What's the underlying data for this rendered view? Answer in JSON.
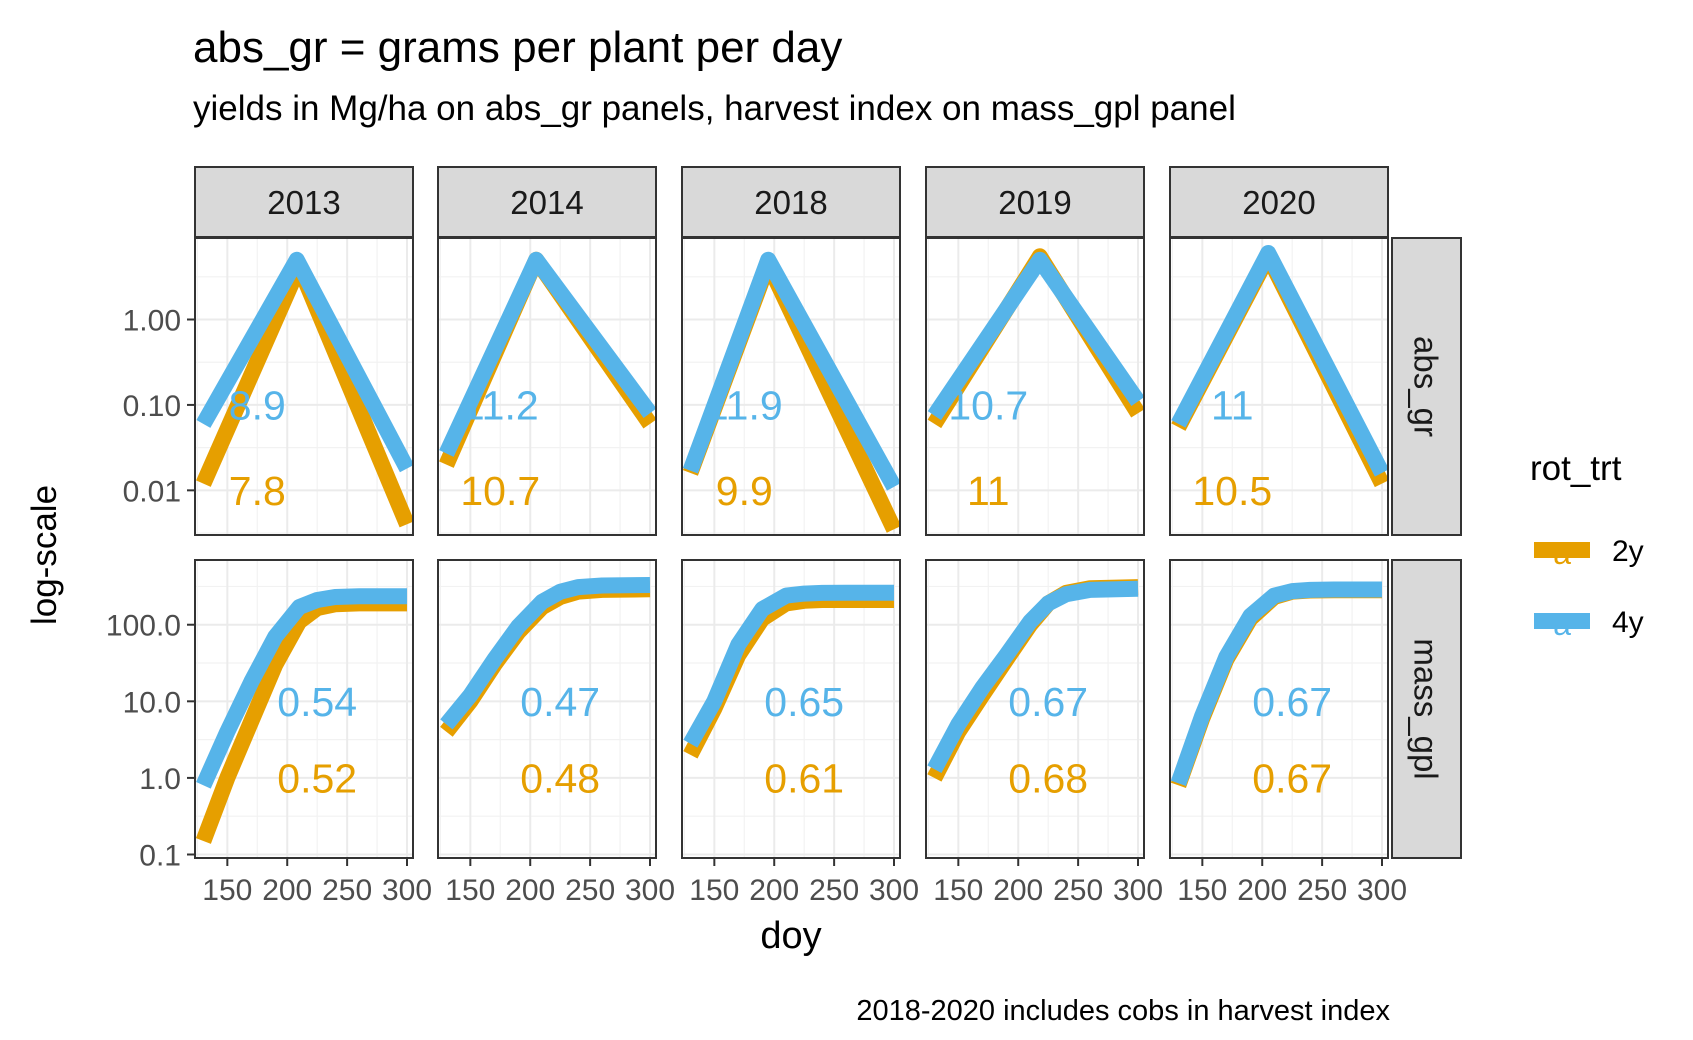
{
  "chart_data": {
    "type": "line",
    "title": "abs_gr = grams per plant per day",
    "subtitle": "yields in Mg/ha on abs_gr panels, harvest index on mass_gpl panel",
    "xlabel": "doy",
    "ylabel": "log-scale",
    "caption": "2018-2020 includes cobs in harvest index",
    "xlim": [
      123,
      305
    ],
    "x_ticks": [
      150,
      200,
      250,
      300
    ],
    "x_tick_labels": [
      "150",
      "200",
      "250",
      "300"
    ],
    "y_scale": "log10",
    "grid": true,
    "legend": {
      "title": "rot_trt",
      "position": "right",
      "key_glyph": "a",
      "entries": [
        {
          "label": "2y",
          "color": "#E69F00"
        },
        {
          "label": "4y",
          "color": "#56B4E9"
        }
      ]
    },
    "facet_columns": [
      "2013",
      "2014",
      "2018",
      "2019",
      "2020"
    ],
    "facet_rows": [
      {
        "strip": "abs_gr",
        "ylim": [
          0.003,
          9
        ],
        "y_ticks": [
          0.01,
          0.1,
          1
        ],
        "y_tick_labels": [
          "0.01",
          "0.10",
          "1.00"
        ],
        "label_y": [
          0.1,
          0.01
        ]
      },
      {
        "strip": "mass_gpl",
        "ylim": [
          0.09,
          700
        ],
        "y_ticks": [
          0.1,
          1,
          10,
          100
        ],
        "y_tick_labels": [
          "0.1",
          "1.0",
          "10.0",
          "100.0"
        ],
        "label_y": [
          10,
          1
        ]
      }
    ],
    "panels": [
      {
        "year": "2013",
        "row": "abs_gr",
        "label_x": 175,
        "annotations": [
          {
            "series": "4y",
            "text": "8.9"
          },
          {
            "series": "2y",
            "text": "7.8"
          }
        ],
        "series": [
          {
            "name": "2y",
            "x": [
              130,
              210,
              300
            ],
            "y": [
              0.012,
              4.2,
              0.004
            ]
          },
          {
            "name": "4y",
            "x": [
              130,
              208,
              300
            ],
            "y": [
              0.06,
              5.0,
              0.018
            ]
          }
        ]
      },
      {
        "year": "2014",
        "row": "abs_gr",
        "label_x": 175,
        "annotations": [
          {
            "series": "4y",
            "text": "11.2"
          },
          {
            "series": "2y",
            "text": "10.7"
          }
        ],
        "series": [
          {
            "name": "2y",
            "x": [
              130,
              205,
              300
            ],
            "y": [
              0.02,
              5.0,
              0.06
            ]
          },
          {
            "name": "4y",
            "x": [
              130,
              205,
              300
            ],
            "y": [
              0.027,
              5.0,
              0.08
            ]
          }
        ]
      },
      {
        "year": "2018",
        "row": "abs_gr",
        "label_x": 175,
        "annotations": [
          {
            "series": "4y",
            "text": "11.9"
          },
          {
            "series": "2y",
            "text": "9.9"
          }
        ],
        "series": [
          {
            "name": "2y",
            "x": [
              130,
              195,
              300
            ],
            "y": [
              0.016,
              4.5,
              0.0035
            ]
          },
          {
            "name": "4y",
            "x": [
              130,
              195,
              300
            ],
            "y": [
              0.017,
              5.0,
              0.011
            ]
          }
        ]
      },
      {
        "year": "2019",
        "row": "abs_gr",
        "label_x": 175,
        "annotations": [
          {
            "series": "4y",
            "text": "10.7"
          },
          {
            "series": "2y",
            "text": "11"
          }
        ],
        "series": [
          {
            "name": "2y",
            "x": [
              130,
              218,
              300
            ],
            "y": [
              0.06,
              5.5,
              0.08
            ]
          },
          {
            "name": "4y",
            "x": [
              130,
              218,
              300
            ],
            "y": [
              0.075,
              5.0,
              0.11
            ]
          }
        ]
      },
      {
        "year": "2020",
        "row": "abs_gr",
        "label_x": 175,
        "annotations": [
          {
            "series": "4y",
            "text": "11"
          },
          {
            "series": "2y",
            "text": "10.5"
          }
        ],
        "series": [
          {
            "name": "2y",
            "x": [
              130,
              205,
              300
            ],
            "y": [
              0.055,
              5.5,
              0.012
            ]
          },
          {
            "name": "4y",
            "x": [
              130,
              205,
              300
            ],
            "y": [
              0.06,
              6.0,
              0.016
            ]
          }
        ]
      },
      {
        "year": "2013",
        "row": "mass_gpl",
        "label_x": 225,
        "annotations": [
          {
            "series": "4y",
            "text": "0.54"
          },
          {
            "series": "2y",
            "text": "0.52"
          }
        ],
        "series": [
          {
            "name": "2y",
            "x": [
              130,
              150,
              170,
              190,
              210,
              225,
              240,
              260,
              300
            ],
            "y": [
              0.15,
              1.0,
              5.5,
              30,
              110,
              165,
              185,
              190,
              190
            ]
          },
          {
            "name": "4y",
            "x": [
              130,
              150,
              170,
              190,
              210,
              225,
              240,
              260,
              300
            ],
            "y": [
              0.8,
              4.0,
              18,
              70,
              170,
              210,
              230,
              235,
              235
            ]
          }
        ]
      },
      {
        "year": "2014",
        "row": "mass_gpl",
        "label_x": 225,
        "annotations": [
          {
            "series": "4y",
            "text": "0.47"
          },
          {
            "series": "2y",
            "text": "0.48"
          }
        ],
        "series": [
          {
            "name": "2y",
            "x": [
              130,
              150,
              170,
              190,
              210,
              225,
              240,
              260,
              300
            ],
            "y": [
              4,
              10,
              30,
              80,
              170,
              230,
              270,
              285,
              290
            ]
          },
          {
            "name": "4y",
            "x": [
              130,
              150,
              170,
              190,
              210,
              225,
              240,
              260,
              300
            ],
            "y": [
              5,
              12,
              35,
              95,
              200,
              270,
              310,
              325,
              330
            ]
          }
        ]
      },
      {
        "year": "2018",
        "row": "mass_gpl",
        "label_x": 225,
        "annotations": [
          {
            "series": "4y",
            "text": "0.65"
          },
          {
            "series": "2y",
            "text": "0.61"
          }
        ],
        "series": [
          {
            "name": "2y",
            "x": [
              130,
              150,
              170,
              190,
              210,
              225,
              240,
              260,
              300
            ],
            "y": [
              2.0,
              8,
              40,
              120,
              190,
              205,
              210,
              210,
              210
            ]
          },
          {
            "name": "4y",
            "x": [
              130,
              150,
              170,
              190,
              210,
              225,
              240,
              260,
              300
            ],
            "y": [
              2.8,
              10,
              55,
              160,
              240,
              255,
              260,
              262,
              262
            ]
          }
        ]
      },
      {
        "year": "2019",
        "row": "mass_gpl",
        "label_x": 225,
        "annotations": [
          {
            "series": "4y",
            "text": "0.67"
          },
          {
            "series": "2y",
            "text": "0.68"
          }
        ],
        "series": [
          {
            "name": "2y",
            "x": [
              130,
              150,
              170,
              190,
              210,
              225,
              240,
              260,
              300
            ],
            "y": [
              1.0,
              4,
              12,
              35,
              100,
              190,
              260,
              300,
              310
            ]
          },
          {
            "name": "4y",
            "x": [
              130,
              150,
              170,
              190,
              210,
              225,
              240,
              260,
              300
            ],
            "y": [
              1.3,
              5,
              15,
              40,
              110,
              190,
              250,
              285,
              295
            ]
          }
        ]
      },
      {
        "year": "2020",
        "row": "mass_gpl",
        "label_x": 225,
        "annotations": [
          {
            "series": "4y",
            "text": "0.67"
          },
          {
            "series": "2y",
            "text": "0.67"
          }
        ],
        "series": [
          {
            "name": "2y",
            "x": [
              130,
              150,
              170,
              190,
              210,
              225,
              240,
              260,
              300
            ],
            "y": [
              0.8,
              6,
              35,
              120,
              230,
              270,
              280,
              282,
              282
            ]
          },
          {
            "name": "4y",
            "x": [
              130,
              150,
              170,
              190,
              210,
              225,
              240,
              260,
              300
            ],
            "y": [
              0.85,
              6.5,
              38,
              130,
              240,
              275,
              285,
              288,
              288
            ]
          }
        ]
      }
    ]
  }
}
